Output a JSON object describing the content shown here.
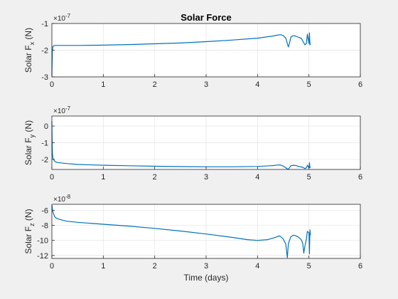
{
  "chart_data": [
    {
      "type": "line",
      "title": "Solar Force",
      "ylabel": {
        "base": "Solar F",
        "sub": "x",
        "unit": " (N)"
      },
      "exponent": {
        "base": "×10",
        "power": "-7"
      },
      "xlabel": "",
      "xlim": [
        0,
        6
      ],
      "ylim": [
        -3,
        -1
      ],
      "xticks": [
        "0",
        "1",
        "2",
        "3",
        "4",
        "5",
        "6"
      ],
      "yticks": [
        "-3",
        "-2",
        "-1"
      ],
      "yticks_values": [
        -3,
        -2,
        -1
      ],
      "grid": true,
      "color": "#0072bd",
      "series": [
        {
          "x": [
            0,
            0.005,
            0.01,
            0.02,
            0.04,
            0.06,
            0.1,
            0.5,
            1,
            1.5,
            2,
            2.5,
            3,
            3.5,
            4,
            4.3,
            4.4,
            4.45,
            4.5,
            4.55,
            4.6,
            4.62,
            4.65,
            4.7,
            4.75,
            4.8,
            4.85,
            4.9,
            4.92,
            4.95,
            4.97,
            5.0,
            5.01,
            5.02,
            5.03
          ],
          "y": [
            -2.95,
            -2.4,
            -2.0,
            -1.86,
            -1.83,
            -1.82,
            -1.82,
            -1.82,
            -1.81,
            -1.79,
            -1.76,
            -1.73,
            -1.68,
            -1.62,
            -1.55,
            -1.47,
            -1.43,
            -1.42,
            -1.45,
            -1.55,
            -1.88,
            -1.75,
            -1.5,
            -1.45,
            -1.48,
            -1.52,
            -1.55,
            -1.72,
            -1.8,
            -1.75,
            -1.4,
            -1.75,
            -1.35,
            -1.8,
            -1.75
          ]
        }
      ]
    },
    {
      "type": "line",
      "title": "",
      "ylabel": {
        "base": "Solar F",
        "sub": "y",
        "unit": " (N)"
      },
      "exponent": {
        "base": "×10",
        "power": "-7"
      },
      "xlabel": "",
      "xlim": [
        0,
        6
      ],
      "ylim": [
        -2.6,
        0.6
      ],
      "xticks": [
        "0",
        "1",
        "2",
        "3",
        "4",
        "5",
        "6"
      ],
      "yticks": [
        "-2",
        "-1",
        "0"
      ],
      "yticks_values": [
        -2,
        -1,
        0
      ],
      "grid": true,
      "color": "#0072bd",
      "series": [
        {
          "x": [
            0,
            0.005,
            0.01,
            0.02,
            0.04,
            0.06,
            0.1,
            0.3,
            0.5,
            1,
            1.5,
            2,
            2.5,
            3,
            3.5,
            4,
            4.3,
            4.4,
            4.45,
            4.5,
            4.55,
            4.6,
            4.62,
            4.65,
            4.7,
            4.75,
            4.8,
            4.85,
            4.9,
            4.92,
            4.95,
            4.97,
            5.0,
            5.01,
            5.02,
            5.03
          ],
          "y": [
            0.3,
            -1.0,
            -1.6,
            -1.9,
            -2.05,
            -2.12,
            -2.18,
            -2.25,
            -2.3,
            -2.35,
            -2.38,
            -2.41,
            -2.43,
            -2.44,
            -2.44,
            -2.42,
            -2.37,
            -2.33,
            -2.34,
            -2.4,
            -2.5,
            -2.6,
            -2.5,
            -2.38,
            -2.35,
            -2.37,
            -2.42,
            -2.45,
            -2.5,
            -2.55,
            -2.5,
            -2.35,
            -2.5,
            -2.2,
            -2.5,
            -2.45
          ]
        }
      ]
    },
    {
      "type": "line",
      "title": "",
      "ylabel": {
        "base": "Solar F",
        "sub": "z",
        "unit": " (N)"
      },
      "exponent": {
        "base": "×10",
        "power": "-8"
      },
      "xlabel": "Time (days)",
      "xlim": [
        0,
        6
      ],
      "ylim": [
        -12.4,
        -5.2
      ],
      "xticks": [
        "0",
        "1",
        "2",
        "3",
        "4",
        "5",
        "6"
      ],
      "yticks": [
        "-12",
        "-10",
        "-8",
        "-6"
      ],
      "yticks_values": [
        -12,
        -10,
        -8,
        -6
      ],
      "grid": true,
      "color": "#0072bd",
      "series": [
        {
          "x": [
            0,
            0.005,
            0.01,
            0.02,
            0.04,
            0.06,
            0.1,
            0.2,
            0.3,
            0.5,
            1,
            1.5,
            2,
            2.5,
            3,
            3.5,
            3.8,
            4,
            4.2,
            4.35,
            4.42,
            4.45,
            4.5,
            4.55,
            4.58,
            4.6,
            4.62,
            4.65,
            4.7,
            4.75,
            4.8,
            4.85,
            4.88,
            4.9,
            4.92,
            4.95,
            4.97,
            5.0,
            5.01,
            5.02,
            5.03
          ],
          "y": [
            -5.3,
            -5.5,
            -5.8,
            -6.2,
            -6.6,
            -6.9,
            -7.1,
            -7.3,
            -7.45,
            -7.6,
            -7.85,
            -8.1,
            -8.4,
            -8.75,
            -9.15,
            -9.6,
            -9.9,
            -10.0,
            -9.9,
            -9.6,
            -9.4,
            -9.5,
            -9.8,
            -10.5,
            -12.3,
            -10.5,
            -10.0,
            -9.5,
            -9.3,
            -9.4,
            -9.6,
            -9.9,
            -10.4,
            -11.7,
            -10.8,
            -9.8,
            -8.8,
            -9.0,
            -11.8,
            -8.6,
            -9.3
          ]
        }
      ]
    }
  ]
}
